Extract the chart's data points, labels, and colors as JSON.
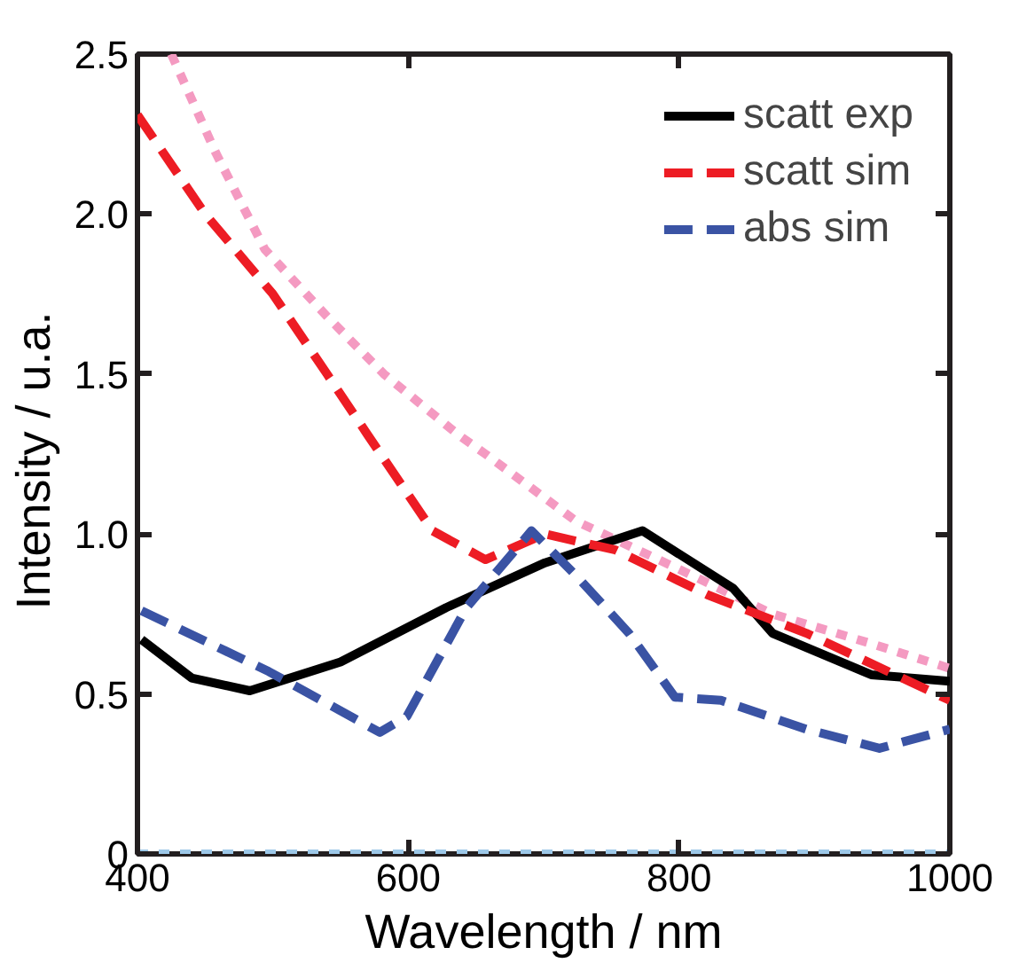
{
  "chart_data": {
    "type": "line",
    "xlabel": "Wavelength / nm",
    "ylabel": "Intensity  / u.a.",
    "xlim": [
      400,
      1000
    ],
    "xticks": [
      400,
      600,
      800,
      1000
    ],
    "ylim": [
      0,
      2.5
    ],
    "yticks": [
      0,
      0.5,
      {
        "value": 1,
        "label": "1.0"
      },
      1.5,
      {
        "value": 2,
        "label": "2.0"
      },
      2.5
    ],
    "grid": false,
    "legend": "top right",
    "series": [
      {
        "x": [
          425,
          458,
          494,
          540,
          582,
          637,
          657,
          724,
          800,
          869,
          940,
          1000
        ],
        "values": [
          2.5,
          2.19,
          1.89,
          1.68,
          1.5,
          1.31,
          1.25,
          1.04,
          0.89,
          0.75,
          0.66,
          0.58
        ],
        "color": "#f49ac1",
        "line_style": "dotted"
      },
      {
        "x": [
          400,
          1000
        ],
        "values": [
          0,
          0
        ],
        "color": "#9dc8e8",
        "line_style": "dotted"
      },
      {
        "name": "scatt exp",
        "x": [
          403,
          440,
          483,
          550,
          628,
          701,
          773,
          840,
          869,
          942,
          1000
        ],
        "values": [
          0.67,
          0.55,
          0.51,
          0.6,
          0.77,
          0.91,
          1.01,
          0.83,
          0.69,
          0.56,
          0.54
        ],
        "color": "#000000",
        "line_style": "solid"
      },
      {
        "name": "scatt sim",
        "x": [
          400,
          450,
          500,
          540,
          570,
          618,
          657,
          701,
          753,
          821,
          894,
          1000
        ],
        "values": [
          2.31,
          2.0,
          1.75,
          1.5,
          1.31,
          1.01,
          0.92,
          1.0,
          0.95,
          0.81,
          0.69,
          0.48
        ],
        "color": "#ed1c24",
        "line_style": "dashed"
      },
      {
        "name": "abs sim",
        "x": [
          403,
          497,
          579,
          599,
          643,
          691,
          724,
          763,
          797,
          831,
          894,
          948,
          1000
        ],
        "values": [
          0.76,
          0.57,
          0.38,
          0.43,
          0.77,
          1.01,
          0.87,
          0.69,
          0.49,
          0.48,
          0.39,
          0.33,
          0.39
        ],
        "color": "#3a53a4",
        "line_style": "dashed"
      }
    ]
  }
}
